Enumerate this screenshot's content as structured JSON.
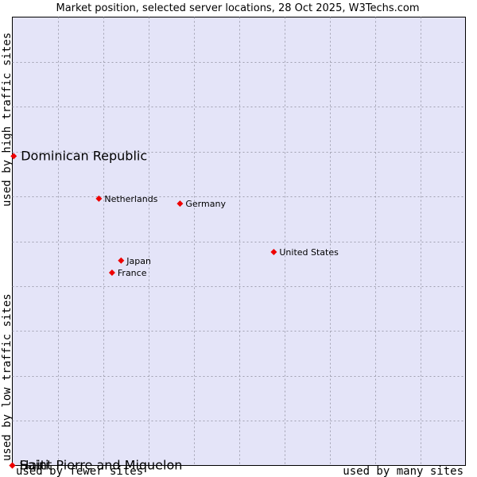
{
  "chart_data": {
    "type": "scatter",
    "title": "Market position, selected server locations, 28 Oct 2025, W3Techs.com",
    "xlabel_low": "used by fewer sites",
    "xlabel_high": "used by many sites",
    "ylabel_low": "used by low traffic sites",
    "ylabel_high": "used by high traffic sites",
    "xlim": [
      0,
      10
    ],
    "ylim": [
      0,
      10
    ],
    "grid": true,
    "points": [
      {
        "label": "Dominican Republic",
        "x": 0.03,
        "y": 6.9,
        "emphasis": true
      },
      {
        "label": "Netherlands",
        "x": 1.91,
        "y": 5.95,
        "emphasis": false
      },
      {
        "label": "Germany",
        "x": 3.7,
        "y": 5.84,
        "emphasis": false
      },
      {
        "label": "United States",
        "x": 5.77,
        "y": 4.76,
        "emphasis": false
      },
      {
        "label": "Japan",
        "x": 2.4,
        "y": 4.57,
        "emphasis": false
      },
      {
        "label": "France",
        "x": 2.2,
        "y": 4.3,
        "emphasis": false
      },
      {
        "label": "Haiti",
        "x": 0.0,
        "y": 0.0,
        "emphasis": true
      },
      {
        "label": "Saint Pierre and Miquelon",
        "x": 0.0,
        "y": 0.0,
        "emphasis": true
      }
    ]
  },
  "colors": {
    "plot_bg": "#e4e4f8",
    "grid": "#a0a0b0",
    "point": "#ee0000"
  }
}
